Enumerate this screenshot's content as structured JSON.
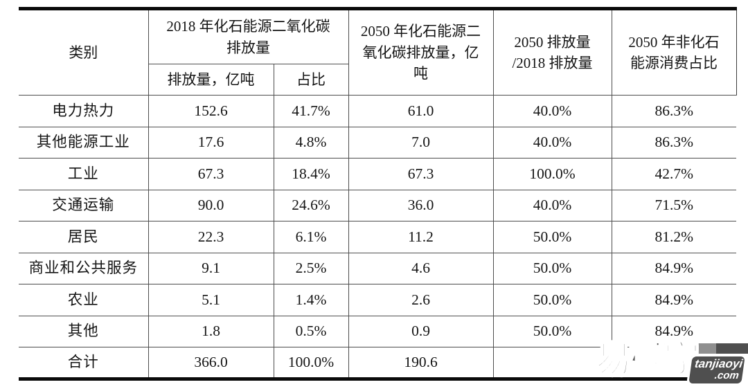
{
  "page": {
    "background": "#ffffff"
  },
  "table": {
    "border_color_inner": "#4d4d4d",
    "border_color_outer": "#0a0a0a",
    "headers": {
      "category": "类别",
      "fossil_2018_group": "2018 年化石能源二氧化碳\n排放量",
      "sub_emission": "排放量，亿吨",
      "sub_share": "占比",
      "fossil_2050": "2050 年化石能源二\n氧化碳排放量，亿\n吨",
      "ratio_2050_2018": "2050 排放量\n/2018 排放量",
      "nonfossil_2050": "2050 年非化石\n能源消费占比"
    },
    "rows": [
      [
        "电力热力",
        "152.6",
        "41.7%",
        "61.0",
        "40.0%",
        "86.3%"
      ],
      [
        "其他能源工业",
        "17.6",
        "4.8%",
        "7.0",
        "40.0%",
        "86.3%"
      ],
      [
        "工业",
        "67.3",
        "18.4%",
        "67.3",
        "100.0%",
        "42.7%"
      ],
      [
        "交通运输",
        "90.0",
        "24.6%",
        "36.0",
        "40.0%",
        "71.5%"
      ],
      [
        "居民",
        "22.3",
        "6.1%",
        "11.2",
        "50.0%",
        "81.2%"
      ],
      [
        "商业和公共服务",
        "9.1",
        "2.5%",
        "4.6",
        "50.0%",
        "84.9%"
      ],
      [
        "农业",
        "5.1",
        "1.4%",
        "2.6",
        "50.0%",
        "84.9%"
      ],
      [
        "其他",
        "1.8",
        "0.5%",
        "0.9",
        "50.0%",
        "84.9%"
      ],
      [
        "合计",
        "366.0",
        "100.0%",
        "190.6",
        "",
        ""
      ]
    ]
  },
  "chart_data": {
    "type": "table",
    "columns": [
      "类别",
      "2018 年化石能源二氧化碳排放量：排放量，亿吨",
      "2018 年化石能源二氧化碳排放量：占比",
      "2050 年化石能源二氧化碳排放量，亿吨",
      "2050 排放量/2018 排放量",
      "2050 年非化石能源消费占比"
    ],
    "rows": [
      [
        "电力热力",
        152.6,
        "41.7%",
        61.0,
        "40.0%",
        "86.3%"
      ],
      [
        "其他能源工业",
        17.6,
        "4.8%",
        7.0,
        "40.0%",
        "86.3%"
      ],
      [
        "工业",
        67.3,
        "18.4%",
        67.3,
        "100.0%",
        "42.7%"
      ],
      [
        "交通运输",
        90.0,
        "24.6%",
        36.0,
        "40.0%",
        "71.5%"
      ],
      [
        "居民",
        22.3,
        "6.1%",
        11.2,
        "50.0%",
        "81.2%"
      ],
      [
        "商业和公共服务",
        9.1,
        "2.5%",
        4.6,
        "50.0%",
        "84.9%"
      ],
      [
        "农业",
        5.1,
        "1.4%",
        2.6,
        "50.0%",
        "84.9%"
      ],
      [
        "其他",
        1.8,
        "0.5%",
        0.9,
        "50.0%",
        "84.9%"
      ],
      [
        "合计",
        366.0,
        "100.0%",
        190.6,
        "",
        ""
      ]
    ]
  },
  "watermark": {
    "brand": "易碳家",
    "badge_line1": "tanjiaoyi",
    "badge_line2": ".com",
    "color_dark": "#4f4f4f",
    "color_mid": "#8f8f8f",
    "brand_color": "#4c4c4c"
  }
}
